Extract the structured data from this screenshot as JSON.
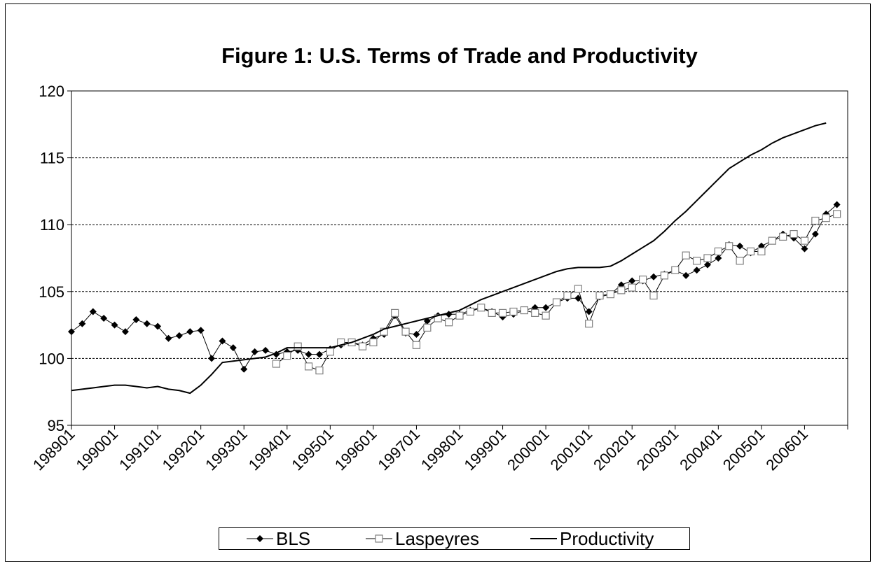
{
  "chart_data": {
    "type": "line",
    "title": "Figure 1: U.S. Terms of Trade and Productivity",
    "categories": [
      "198901",
      null,
      null,
      null,
      "199001",
      null,
      null,
      null,
      "199101",
      null,
      null,
      null,
      "199201",
      null,
      null,
      null,
      "199301",
      null,
      null,
      null,
      "199401",
      null,
      null,
      null,
      "199501",
      null,
      null,
      null,
      "199601",
      null,
      null,
      null,
      "199701",
      null,
      null,
      null,
      "199801",
      null,
      null,
      null,
      "199901",
      null,
      null,
      null,
      "200001",
      null,
      null,
      null,
      "200101",
      null,
      null,
      null,
      "200201",
      null,
      null,
      null,
      "200301",
      null,
      null,
      null,
      "200401",
      null,
      null,
      null,
      "200501",
      null,
      null,
      null,
      "200601",
      null,
      null,
      null
    ],
    "series": [
      {
        "name": "BLS",
        "color": "#000000",
        "marker": "diamond",
        "values": [
          102.0,
          102.6,
          103.5,
          103.0,
          102.5,
          102.0,
          102.9,
          102.6,
          102.4,
          101.5,
          101.7,
          102.0,
          102.1,
          100.0,
          101.3,
          100.8,
          99.2,
          100.5,
          100.6,
          100.3,
          100.5,
          100.6,
          100.3,
          100.3,
          100.7,
          101.0,
          101.2,
          101.0,
          101.5,
          101.8,
          103.2,
          101.9,
          101.8,
          102.8,
          103.2,
          103.3,
          103.3,
          103.6,
          103.8,
          103.5,
          103.1,
          103.3,
          103.6,
          103.8,
          103.8,
          104.2,
          104.5,
          104.5,
          103.5,
          104.6,
          104.8,
          105.5,
          105.8,
          105.8,
          106.1,
          106.3,
          106.6,
          106.2,
          106.6,
          107.0,
          107.5,
          108.5,
          108.4,
          107.9,
          108.4,
          108.8,
          109.3,
          109.0,
          108.2,
          109.3,
          110.8,
          111.5
        ]
      },
      {
        "name": "Laspeyres",
        "color": "#808080",
        "marker": "square",
        "values": [
          null,
          null,
          null,
          null,
          null,
          null,
          null,
          null,
          null,
          null,
          null,
          null,
          null,
          null,
          null,
          null,
          null,
          null,
          null,
          99.6,
          100.2,
          100.9,
          99.4,
          99.1,
          100.5,
          101.2,
          101.2,
          100.9,
          101.2,
          102.0,
          103.4,
          102.0,
          101.0,
          102.3,
          103.0,
          102.7,
          103.2,
          103.5,
          103.8,
          103.4,
          103.4,
          103.5,
          103.6,
          103.4,
          103.2,
          104.2,
          104.7,
          105.2,
          102.6,
          104.7,
          104.8,
          105.1,
          105.3,
          105.9,
          104.7,
          106.2,
          106.6,
          107.7,
          107.3,
          107.5,
          108.0,
          108.4,
          107.3,
          108.0,
          108.0,
          108.8,
          109.1,
          109.3,
          108.8,
          110.3,
          110.5,
          110.8
        ]
      },
      {
        "name": "Productivity",
        "color": "#000000",
        "marker": "none",
        "values": [
          97.6,
          97.7,
          97.8,
          97.9,
          98.0,
          98.0,
          97.9,
          97.8,
          97.9,
          97.7,
          97.6,
          97.4,
          98.0,
          98.8,
          99.7,
          99.8,
          99.9,
          100.0,
          100.1,
          100.4,
          100.8,
          100.8,
          100.8,
          100.8,
          100.8,
          101.0,
          101.2,
          101.5,
          101.8,
          102.2,
          102.4,
          102.6,
          102.8,
          103.0,
          103.2,
          103.4,
          103.6,
          104.0,
          104.4,
          104.7,
          105.0,
          105.3,
          105.6,
          105.9,
          106.2,
          106.5,
          106.7,
          106.8,
          106.8,
          106.8,
          106.9,
          107.3,
          107.8,
          108.3,
          108.8,
          109.5,
          110.3,
          111.0,
          111.8,
          112.6,
          113.4,
          114.2,
          114.7,
          115.2,
          115.6,
          116.1,
          116.5,
          116.8,
          117.1,
          117.4,
          117.6,
          null
        ]
      }
    ],
    "ylim": [
      95,
      120
    ],
    "yticks": [
      95,
      100,
      105,
      110,
      115,
      120
    ],
    "grid": true,
    "legend": "bottom"
  }
}
